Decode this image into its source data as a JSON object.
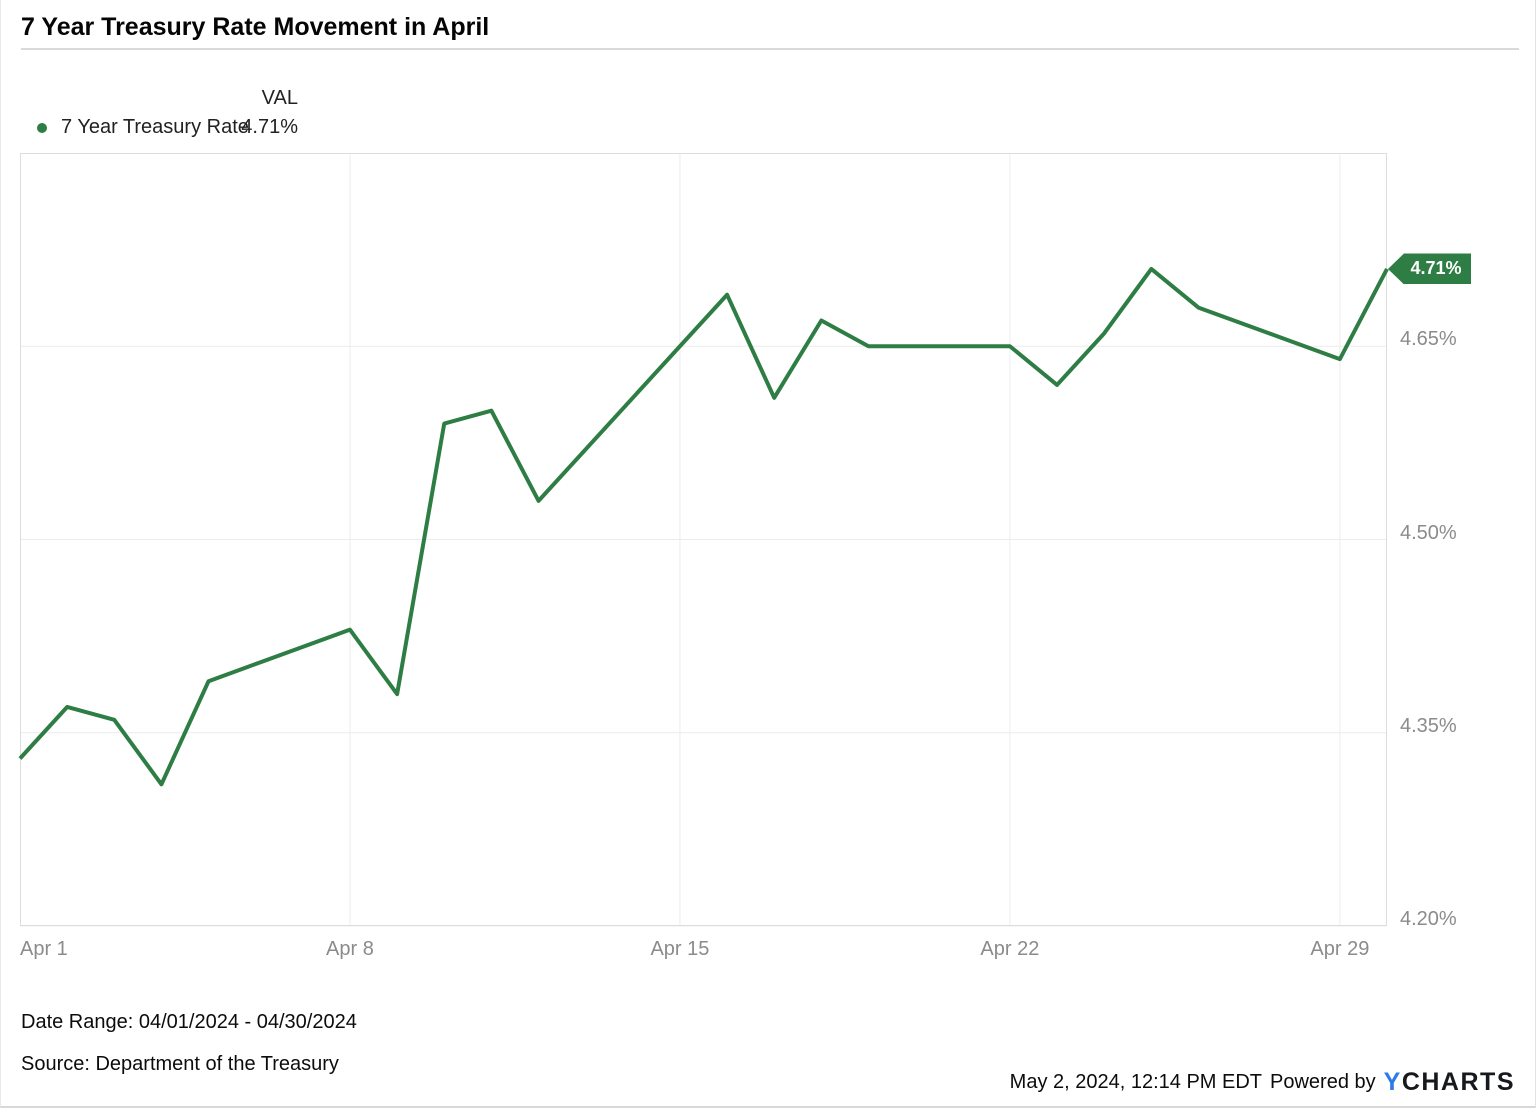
{
  "header": {
    "title": "7 Year Treasury Rate Movement in April"
  },
  "legend": {
    "value_header": "VAL",
    "series_label": "7 Year Treasury Rate",
    "series_value": "4.71%"
  },
  "chart_data": {
    "type": "line",
    "title": "7 Year Treasury Rate Movement in April",
    "series": [
      {
        "name": "7 Year Treasury Rate",
        "x": [
          "Apr 1",
          "Apr 2",
          "Apr 3",
          "Apr 4",
          "Apr 5",
          "Apr 8",
          "Apr 9",
          "Apr 10",
          "Apr 11",
          "Apr 12",
          "Apr 15",
          "Apr 16",
          "Apr 17",
          "Apr 18",
          "Apr 19",
          "Apr 22",
          "Apr 23",
          "Apr 24",
          "Apr 25",
          "Apr 26",
          "Apr 29",
          "Apr 30"
        ],
        "values": [
          4.33,
          4.37,
          4.36,
          4.31,
          4.39,
          4.43,
          4.38,
          4.59,
          4.6,
          4.53,
          4.65,
          4.69,
          4.61,
          4.67,
          4.65,
          4.65,
          4.62,
          4.66,
          4.71,
          4.68,
          4.64,
          4.71
        ]
      }
    ],
    "ylabel": "",
    "xlabel": "",
    "unit": "%",
    "ylim": [
      4.2,
      4.8
    ],
    "y_ticks": [
      4.2,
      4.35,
      4.5,
      4.65
    ],
    "x_ticks": [
      "Apr 1",
      "Apr 8",
      "Apr 15",
      "Apr 22",
      "Apr 29"
    ],
    "x_domain_days": [
      1,
      30
    ],
    "grid": true,
    "legend_position": "top-left",
    "last_value_label": "4.71%",
    "line_color": "#2e7d44",
    "grid_color": "#ececec",
    "border_color": "#dddddd"
  },
  "footer": {
    "date_range": "Date Range: 04/01/2024 - 04/30/2024",
    "source": "Source: Department of the Treasury",
    "timestamp": "May 2, 2024, 12:14 PM EDT",
    "powered_by": "Powered by",
    "brand_y": "Y",
    "brand_rest": "CHARTS"
  }
}
